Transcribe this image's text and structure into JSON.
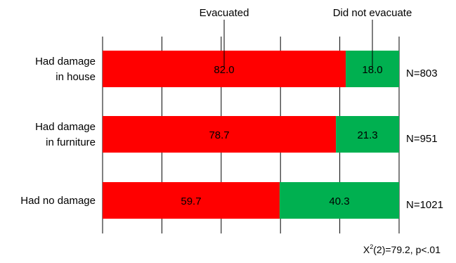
{
  "chart_data": {
    "type": "bar",
    "orientation": "horizontal",
    "stacked": true,
    "percent": true,
    "xlim": [
      0,
      100
    ],
    "categories": [
      "Had damage\nin house",
      "Had damage\nin furniture",
      "Had no damage"
    ],
    "series": [
      {
        "name": "Evacuated",
        "values": [
          82.0,
          78.7,
          59.7
        ],
        "color": "#ff0000"
      },
      {
        "name": "Did not evacuate",
        "values": [
          18.0,
          21.3,
          40.3
        ],
        "color": "#00b050"
      }
    ],
    "n_labels": [
      "N=803",
      "N=951",
      "N=1021"
    ],
    "grid": "vertical",
    "legend_placement": "top (callout labels)"
  },
  "stat": {
    "symbol": "X",
    "sup": "2",
    "rest": "(2)=79.2, p<.01"
  }
}
